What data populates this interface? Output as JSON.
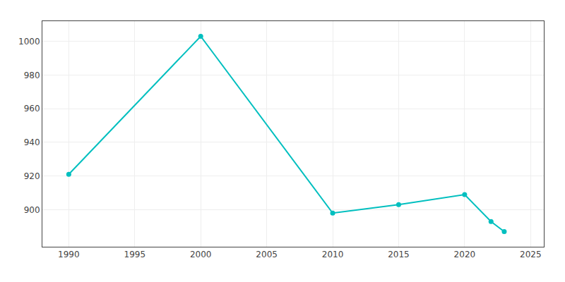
{
  "chart_data": {
    "type": "line",
    "x": [
      1990,
      2000,
      2010,
      2015,
      2020,
      2022,
      2023
    ],
    "values": [
      921,
      1003,
      898,
      903,
      909,
      893,
      887
    ],
    "color": "#00BFBF",
    "marker": "circle",
    "line_style": "solid",
    "xlim": [
      1988,
      2026
    ],
    "ylim": [
      878,
      1012
    ],
    "xticks": [
      1990,
      1995,
      2000,
      2005,
      2010,
      2015,
      2020,
      2025
    ],
    "yticks": [
      900,
      920,
      940,
      960,
      980,
      1000
    ],
    "grid": true
  }
}
